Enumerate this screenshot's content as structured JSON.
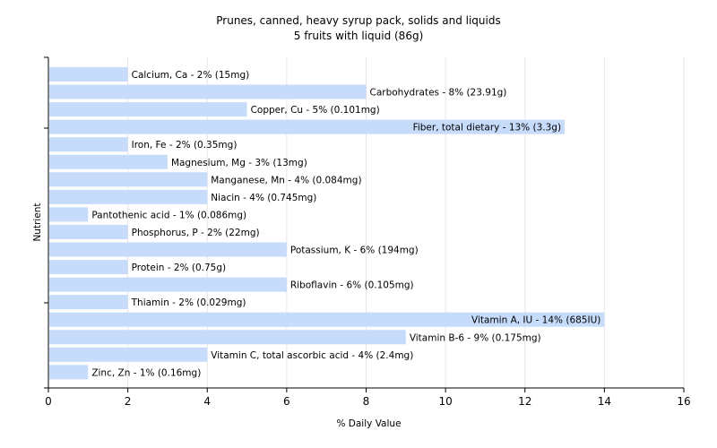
{
  "chart_data": {
    "type": "bar",
    "orientation": "horizontal",
    "title": "Prunes, canned, heavy syrup pack, solids and liquids",
    "subtitle": "5 fruits with liquid (86g)",
    "xlabel": "% Daily Value",
    "ylabel": "Nutrient",
    "xlim": [
      0,
      16
    ],
    "xticks": [
      "0",
      "2",
      "4",
      "6",
      "8",
      "10",
      "12",
      "14",
      "16"
    ],
    "grid": true,
    "legend": "none",
    "bar_color": "#c6dcfa",
    "categories": [
      "Calcium, Ca",
      "Carbohydrates",
      "Copper, Cu",
      "Fiber, total dietary",
      "Iron, Fe",
      "Magnesium, Mg",
      "Manganese, Mn",
      "Niacin",
      "Pantothenic acid",
      "Phosphorus, P",
      "Potassium, K",
      "Protein",
      "Riboflavin",
      "Thiamin",
      "Vitamin A, IU",
      "Vitamin B-6",
      "Vitamin C, total ascorbic acid",
      "Zinc, Zn"
    ],
    "values": [
      2,
      8,
      5,
      13,
      2,
      3,
      4,
      4,
      1,
      2,
      6,
      2,
      6,
      2,
      14,
      9,
      4,
      1
    ],
    "labels": [
      "Calcium, Ca - 2% (15mg)",
      "Carbohydrates - 8% (23.91g)",
      "Copper, Cu - 5% (0.101mg)",
      "Fiber, total dietary - 13% (3.3g)",
      "Iron, Fe - 2% (0.35mg)",
      "Magnesium, Mg - 3% (13mg)",
      "Manganese, Mn - 4% (0.084mg)",
      "Niacin - 4% (0.745mg)",
      "Pantothenic acid - 1% (0.086mg)",
      "Phosphorus, P - 2% (22mg)",
      "Potassium, K - 6% (194mg)",
      "Protein - 2% (0.75g)",
      "Riboflavin - 6% (0.105mg)",
      "Thiamin - 2% (0.029mg)",
      "Vitamin A, IU - 14% (685IU)",
      "Vitamin B-6 - 9% (0.175mg)",
      "Vitamin C, total ascorbic acid - 4% (2.4mg)",
      "Zinc, Zn - 1% (0.16mg)"
    ]
  }
}
